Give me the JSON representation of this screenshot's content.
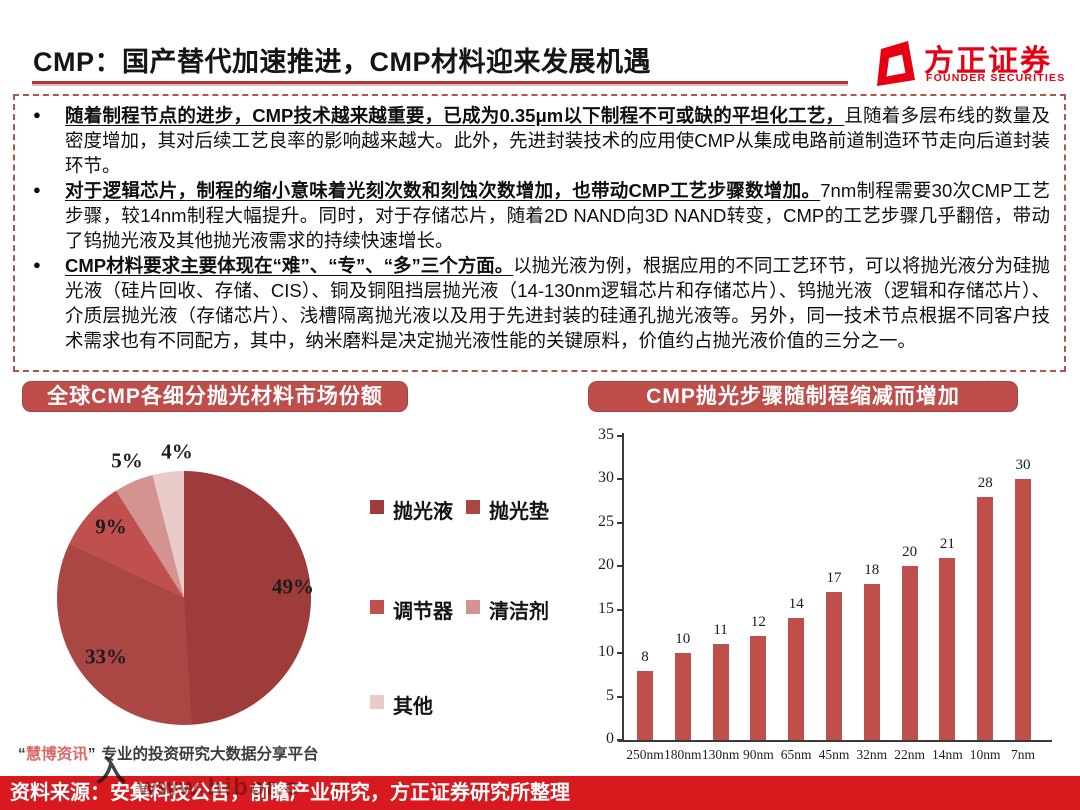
{
  "header": {
    "title": "CMP：国产替代加速推进，CMP材料迎来发展机遇",
    "logo": {
      "name_cn": "方正证券",
      "name_en": "FOUNDER SECURITIES",
      "brand_color": "#e60012"
    }
  },
  "bullets": [
    {
      "lead": "随着制程节点的进步，CMP技术越来越重要，已成为0.35μm以下制程不可或缺的平坦化工艺，",
      "rest": "且随着多层布线的数量及密度增加，其对后续工艺良率的影响越来越大。此外，先进封装技术的应用使CMP从集成电路前道制造环节走向后道封装环节。"
    },
    {
      "lead": "对于逻辑芯片，制程的缩小意味着光刻次数和刻蚀次数增加，也带动CMP工艺步骤数增加。",
      "rest": "7nm制程需要30次CMP工艺步骤，较14nm制程大幅提升。同时，对于存储芯片，随着2D NAND向3D NAND转变，CMP的工艺步骤几乎翻倍，带动了钨抛光液及其他抛光液需求的持续快速增长。"
    },
    {
      "lead": "CMP材料要求主要体现在“难”、“专”、“多”三个方面。",
      "rest": "以抛光液为例，根据应用的不同工艺环节，可以将抛光液分为硅抛光液（硅片回收、存储、CIS）、铜及铜阻挡层抛光液（14-130nm逻辑芯片和存储芯片）、钨抛光液（逻辑和存储芯片）、介质层抛光液（存储芯片）、浅槽隔离抛光液以及用于先进封装的硅通孔抛光液等。另外，同一技术节点根据不同客户技术需求也有不同配方，其中，纳米磨料是决定抛光液性能的关键原料，价值约占抛光液价值的三分之一。"
    }
  ],
  "chart_data": [
    {
      "type": "pie",
      "title": "全球CMP各细分抛光材料市场份额",
      "labels": [
        "抛光液",
        "抛光垫",
        "调节器",
        "清洁剂",
        "其他"
      ],
      "values": [
        49,
        33,
        9,
        5,
        4
      ],
      "unit": "%",
      "data_labels": [
        "49%",
        "33%",
        "9%",
        "5%",
        "4%"
      ],
      "colors": [
        "#9d3c3a",
        "#aa4643",
        "#c0504d",
        "#d49391",
        "#e9cbca"
      ],
      "start_angle_deg": 0,
      "direction": "clockwise",
      "legend_position": "right"
    },
    {
      "type": "bar",
      "title": "CMP抛光步骤随制程缩减而增加",
      "categories": [
        "250nm",
        "180nm",
        "130nm",
        "90nm",
        "65nm",
        "45nm",
        "32nm",
        "22nm",
        "14nm",
        "10nm",
        "7nm"
      ],
      "values": [
        8,
        10,
        11,
        12,
        14,
        17,
        18,
        20,
        21,
        28,
        30
      ],
      "xlabel": "",
      "ylabel": "",
      "ylim": [
        0,
        35
      ],
      "yticks": [
        0,
        5,
        10,
        15,
        20,
        25,
        30,
        35
      ],
      "bar_color": "#bf4f4b",
      "grid": false,
      "legend_position": "none"
    }
  ],
  "watermark": {
    "open_quote": "“",
    "brand": "慧博资讯",
    "close_quote": "”",
    "tagline": "专业的投资研究大数据分享平台",
    "stray": "入",
    "overlay": "www.hibor.c"
  },
  "footer": {
    "source": "资料来源：安集科技公告，前瞻产业研究，方正证券研究所整理"
  },
  "colors": {
    "section_header_bg": "#bf4e4b",
    "title_underline": "#ab3939",
    "dashed_border": "#b2534e",
    "footer_band": "#d8191d",
    "brand_red": "#e60012",
    "watermark_red": "#d96a6a"
  }
}
